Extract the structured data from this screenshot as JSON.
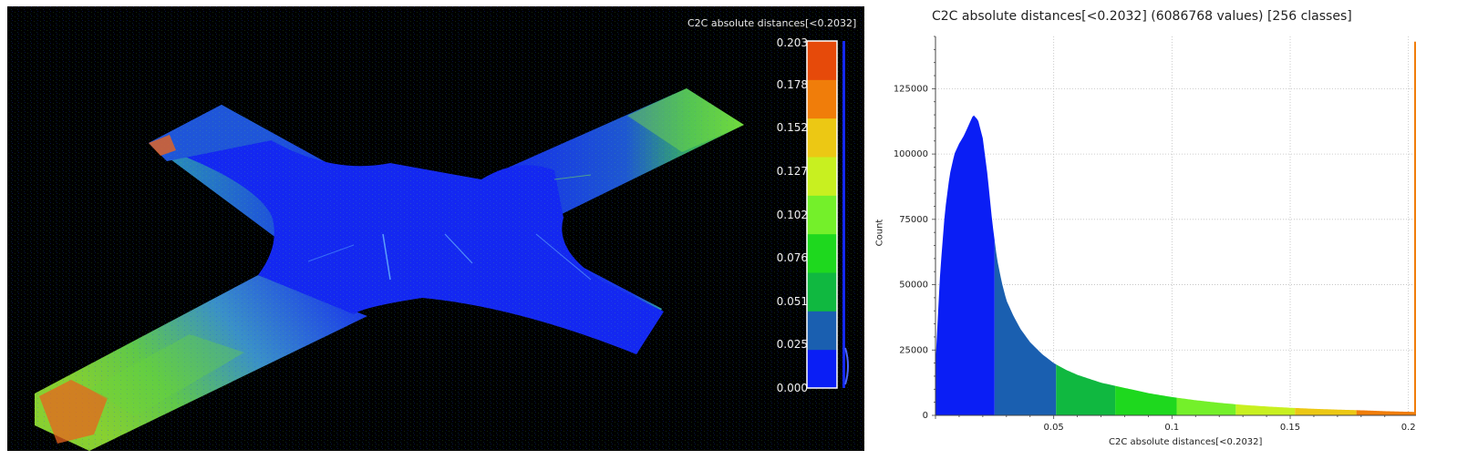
{
  "view3d": {
    "scalebar": {
      "title": "C2C absolute distances[<0.2032]",
      "ticks": [
        "0.203",
        "0.178",
        "0.152",
        "0.127",
        "0.102",
        "0.076",
        "0.051",
        "0.025",
        "0.000"
      ],
      "colors": [
        "#0a1ef5",
        "#1a5fb0",
        "#10b840",
        "#1ed81e",
        "#74f02a",
        "#c8f020",
        "#ecc814",
        "#f07d0a",
        "#e64a0a"
      ]
    },
    "cloud_colors": {
      "base": "#1428f0",
      "mid": "#30a8e0",
      "green": "#6ad63a",
      "orange": "#e8641e"
    }
  },
  "chart_data": {
    "type": "bar",
    "title": "C2C absolute distances[<0.2032] (6086768 values)  [256 classes]",
    "xlabel": "C2C absolute distances[<0.2032]",
    "ylabel": "Count",
    "xlim": [
      0,
      0.2032
    ],
    "ylim": [
      0,
      145000
    ],
    "x_ticks": [
      {
        "value": 0.05,
        "label": "0.05"
      },
      {
        "value": 0.1,
        "label": "0.1"
      },
      {
        "value": 0.15,
        "label": "0.15"
      },
      {
        "value": 0.2,
        "label": "0.2"
      }
    ],
    "y_ticks": [
      {
        "value": 0,
        "label": "0"
      },
      {
        "value": 25000,
        "label": "25000"
      },
      {
        "value": 50000,
        "label": "50000"
      },
      {
        "value": 75000,
        "label": "75000"
      },
      {
        "value": 100000,
        "label": "100000"
      },
      {
        "value": 125000,
        "label": "125000"
      }
    ],
    "grid": true,
    "curve": {
      "x": [
        0.0,
        0.002,
        0.004,
        0.006,
        0.008,
        0.01,
        0.012,
        0.014,
        0.016,
        0.018,
        0.02,
        0.022,
        0.024,
        0.026,
        0.028,
        0.03,
        0.033,
        0.036,
        0.04,
        0.045,
        0.05,
        0.055,
        0.06,
        0.07,
        0.08,
        0.09,
        0.1,
        0.11,
        0.12,
        0.13,
        0.14,
        0.15,
        0.16,
        0.17,
        0.178,
        0.19,
        0.2032
      ],
      "y": [
        20000,
        55000,
        78000,
        92000,
        100000,
        104000,
        107000,
        111000,
        115000,
        113000,
        106000,
        92000,
        74000,
        60000,
        51000,
        44000,
        38000,
        33000,
        28000,
        23500,
        20000,
        17500,
        15500,
        12500,
        10500,
        8500,
        7000,
        5800,
        4800,
        4000,
        3400,
        2900,
        2500,
        2200,
        2000,
        1600,
        1300
      ]
    },
    "final_spike": {
      "x": 0.2032,
      "value": 143000
    },
    "color_bands": [
      {
        "from": 0.0,
        "to": 0.025,
        "color": "#0a1ef5"
      },
      {
        "from": 0.025,
        "to": 0.051,
        "color": "#1a5fb0"
      },
      {
        "from": 0.051,
        "to": 0.076,
        "color": "#10b840"
      },
      {
        "from": 0.076,
        "to": 0.102,
        "color": "#1ed81e"
      },
      {
        "from": 0.102,
        "to": 0.127,
        "color": "#74f02a"
      },
      {
        "from": 0.127,
        "to": 0.152,
        "color": "#c8f020"
      },
      {
        "from": 0.152,
        "to": 0.178,
        "color": "#ecc814"
      },
      {
        "from": 0.178,
        "to": 0.2032,
        "color": "#f07d0a"
      }
    ]
  }
}
